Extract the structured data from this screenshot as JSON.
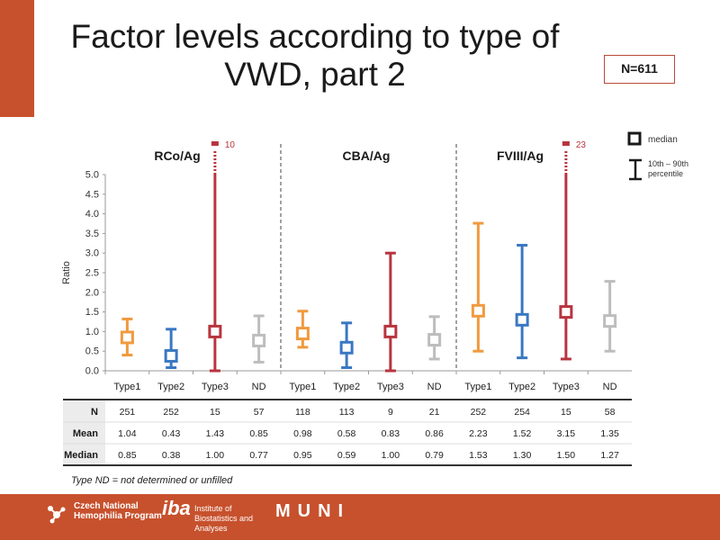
{
  "title": "Factor levels according to type of VWD, part 2",
  "n_badge": "N=611",
  "footnote": "Type ND = not determined or unfilled",
  "legend": {
    "median_label": "median",
    "percentile_label": "10th – 90th percentile"
  },
  "footer": {
    "logos": [
      {
        "icon": "hemophilia-network-icon",
        "text": "Czech National Hemophilia Program"
      },
      {
        "icon": "iba-logo",
        "mark": "iba",
        "text": "Institute of Biostatistics and Analyses"
      },
      {
        "icon": "muni-logo",
        "text": "MUNI"
      }
    ]
  },
  "colors": {
    "Type1": "#f09a3e",
    "Type2": "#3a78c2",
    "Type3": "#b8343e",
    "ND": "#bdbdbd",
    "accent": "#c7512d"
  },
  "chart_data": {
    "type": "boxplot-range",
    "ylabel": "Ratio",
    "ylim": [
      0,
      5.0
    ],
    "yticks": [
      "0.0",
      "0.5",
      "1.0",
      "1.5",
      "2.0",
      "2.5",
      "3.0",
      "3.5",
      "4.0",
      "4.5",
      "5.0"
    ],
    "groups": [
      {
        "name": "RCo/Ag",
        "items": [
          {
            "category": "Type1",
            "p10": 0.4,
            "p90": 1.32,
            "median": 0.85
          },
          {
            "category": "Type2",
            "p10": 0.08,
            "p90": 1.06,
            "median": 0.38
          },
          {
            "category": "Type3",
            "p10": 0.0,
            "p90": 10,
            "median": 1.0,
            "overflow_label": "10"
          },
          {
            "category": "ND",
            "p10": 0.22,
            "p90": 1.4,
            "median": 0.77
          }
        ]
      },
      {
        "name": "CBA/Ag",
        "items": [
          {
            "category": "Type1",
            "p10": 0.6,
            "p90": 1.52,
            "median": 0.95
          },
          {
            "category": "Type2",
            "p10": 0.08,
            "p90": 1.22,
            "median": 0.59
          },
          {
            "category": "Type3",
            "p10": 0.0,
            "p90": 3.0,
            "median": 1.0
          },
          {
            "category": "ND",
            "p10": 0.3,
            "p90": 1.38,
            "median": 0.79
          }
        ]
      },
      {
        "name": "FVIII/Ag",
        "items": [
          {
            "category": "Type1",
            "p10": 0.5,
            "p90": 3.76,
            "median": 1.53
          },
          {
            "category": "Type2",
            "p10": 0.33,
            "p90": 3.2,
            "median": 1.3
          },
          {
            "category": "Type3",
            "p10": 0.3,
            "p90": 23,
            "median": 1.5,
            "overflow_label": "23"
          },
          {
            "category": "ND",
            "p10": 0.5,
            "p90": 2.28,
            "median": 1.27
          }
        ]
      }
    ],
    "table": {
      "row_labels": [
        "N",
        "Mean",
        "Median"
      ],
      "rows": [
        [
          "251",
          "252",
          "15",
          "57",
          "118",
          "113",
          "9",
          "21",
          "252",
          "254",
          "15",
          "58"
        ],
        [
          "1.04",
          "0.43",
          "1.43",
          "0.85",
          "0.98",
          "0.58",
          "0.83",
          "0.86",
          "2.23",
          "1.52",
          "3.15",
          "1.35"
        ],
        [
          "0.85",
          "0.38",
          "1.00",
          "0.77",
          "0.95",
          "0.59",
          "1.00",
          "0.79",
          "1.53",
          "1.30",
          "1.50",
          "1.27"
        ]
      ]
    }
  }
}
